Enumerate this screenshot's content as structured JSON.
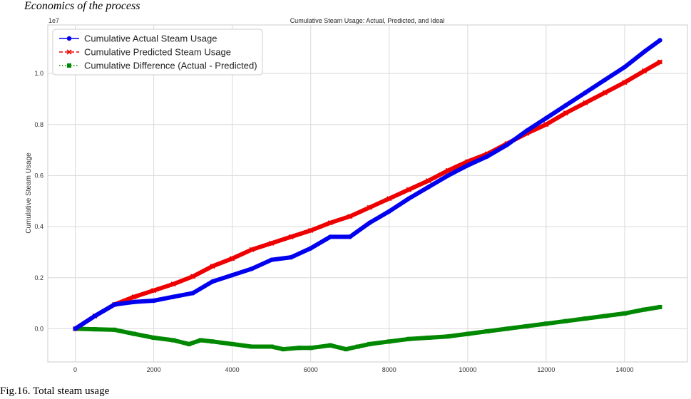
{
  "section_heading": "Economics of the process",
  "caption": "Fig.16. Total steam usage",
  "colors": {
    "actual": "#0000ee",
    "predicted": "#ee0000",
    "difference": "#008800",
    "grid": "#d9d9d9",
    "frame": "#cccccc"
  },
  "chart_data": {
    "type": "line",
    "title": "Cumulative Steam Usage: Actual, Predicted, and Ideal",
    "xlabel": "",
    "ylabel": "Cumulative Steam Usage",
    "y_offset_label": "1e7",
    "xlim": [
      -700,
      15600
    ],
    "ylim": [
      -0.13,
      1.19
    ],
    "xticks": [
      0,
      2000,
      4000,
      6000,
      8000,
      10000,
      12000,
      14000
    ],
    "xtick_labels": [
      "0",
      "2000",
      "4000",
      "6000",
      "8000",
      "10000",
      "12000",
      "14000"
    ],
    "yticks": [
      0.0,
      0.2,
      0.4,
      0.6,
      0.8,
      1.0
    ],
    "ytick_labels": [
      "0.0",
      "0.2",
      "0.4",
      "0.6",
      "0.8",
      "1.0"
    ],
    "grid": true,
    "legend_position": "top-left",
    "series": [
      {
        "name": "Cumulative Actual Steam Usage",
        "marker": "circle",
        "color_key": "actual",
        "x": [
          0,
          500,
          1000,
          1500,
          2000,
          2500,
          3000,
          3500,
          4000,
          4500,
          5000,
          5500,
          6000,
          6500,
          7000,
          7500,
          8000,
          8500,
          9000,
          9500,
          10000,
          10500,
          11000,
          11500,
          12000,
          12500,
          13000,
          13500,
          14000,
          14500,
          14900
        ],
        "y": [
          0.0,
          0.05,
          0.095,
          0.105,
          0.11,
          0.125,
          0.14,
          0.185,
          0.21,
          0.235,
          0.27,
          0.28,
          0.315,
          0.36,
          0.36,
          0.415,
          0.46,
          0.51,
          0.555,
          0.6,
          0.64,
          0.675,
          0.72,
          0.775,
          0.825,
          0.875,
          0.925,
          0.975,
          1.025,
          1.085,
          1.13
        ]
      },
      {
        "name": "Cumulative Predicted Steam Usage",
        "marker": "x",
        "color_key": "predicted",
        "x": [
          0,
          500,
          1000,
          1500,
          2000,
          2500,
          3000,
          3500,
          4000,
          4500,
          5000,
          5500,
          6000,
          6500,
          7000,
          7500,
          8000,
          8500,
          9000,
          9500,
          10000,
          10500,
          11000,
          11500,
          12000,
          12500,
          13000,
          13500,
          14000,
          14500,
          14900
        ],
        "y": [
          0.0,
          0.05,
          0.095,
          0.125,
          0.15,
          0.175,
          0.205,
          0.245,
          0.275,
          0.31,
          0.335,
          0.36,
          0.385,
          0.415,
          0.44,
          0.475,
          0.51,
          0.545,
          0.58,
          0.62,
          0.655,
          0.685,
          0.725,
          0.765,
          0.8,
          0.845,
          0.885,
          0.925,
          0.965,
          1.01,
          1.045
        ]
      },
      {
        "name": "Cumulative Difference (Actual - Predicted)",
        "marker": "square",
        "color_key": "difference",
        "x": [
          0,
          500,
          1000,
          1500,
          2000,
          2500,
          2900,
          3200,
          3500,
          4000,
          4500,
          5000,
          5300,
          5700,
          6000,
          6500,
          6900,
          7200,
          7500,
          8000,
          8500,
          9000,
          9500,
          10000,
          10500,
          11000,
          11500,
          12000,
          12500,
          13000,
          13500,
          14000,
          14500,
          14900
        ],
        "y": [
          0.0,
          -0.002,
          -0.004,
          -0.02,
          -0.035,
          -0.045,
          -0.06,
          -0.045,
          -0.05,
          -0.06,
          -0.07,
          -0.07,
          -0.08,
          -0.075,
          -0.075,
          -0.065,
          -0.08,
          -0.07,
          -0.06,
          -0.05,
          -0.04,
          -0.035,
          -0.03,
          -0.02,
          -0.01,
          0.0,
          0.01,
          0.02,
          0.03,
          0.04,
          0.05,
          0.06,
          0.075,
          0.085
        ]
      }
    ]
  }
}
